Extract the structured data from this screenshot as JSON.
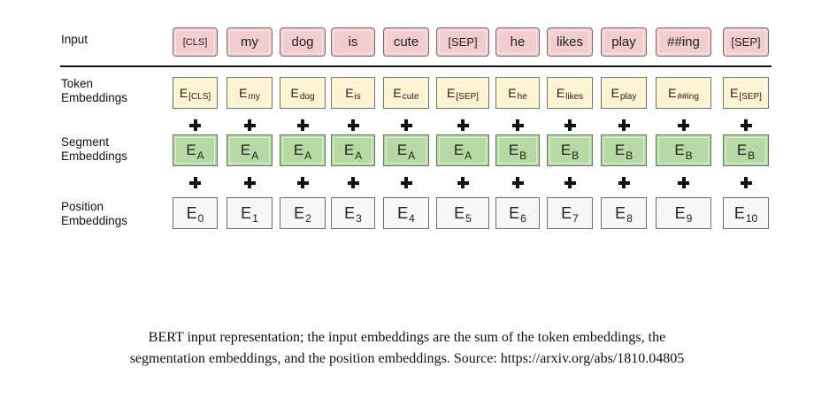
{
  "rows": {
    "input": {
      "label": "Input"
    },
    "token": {
      "label_line1": "Token",
      "label_line2": "Embeddings"
    },
    "segment": {
      "label_line1": "Segment",
      "label_line2": "Embeddings"
    },
    "position": {
      "label_line1": "Position",
      "label_line2": "Embeddings"
    }
  },
  "tokens": [
    "[CLS]",
    "my",
    "dog",
    "is",
    "cute",
    "[SEP]",
    "he",
    "likes",
    "play",
    "##ing",
    "[SEP]"
  ],
  "token_embeddings": [
    {
      "base": "E",
      "sub": "[CLS]"
    },
    {
      "base": "E",
      "sub": "my"
    },
    {
      "base": "E",
      "sub": "dog"
    },
    {
      "base": "E",
      "sub": "is"
    },
    {
      "base": "E",
      "sub": "cute"
    },
    {
      "base": "E",
      "sub": "[SEP]"
    },
    {
      "base": "E",
      "sub": "he"
    },
    {
      "base": "E",
      "sub": "likes"
    },
    {
      "base": "E",
      "sub": "play"
    },
    {
      "base": "E",
      "sub": "##ing"
    },
    {
      "base": "E",
      "sub": "[SEP]"
    }
  ],
  "segment_embeddings": [
    {
      "base": "E",
      "sub": "A"
    },
    {
      "base": "E",
      "sub": "A"
    },
    {
      "base": "E",
      "sub": "A"
    },
    {
      "base": "E",
      "sub": "A"
    },
    {
      "base": "E",
      "sub": "A"
    },
    {
      "base": "E",
      "sub": "A"
    },
    {
      "base": "E",
      "sub": "B"
    },
    {
      "base": "E",
      "sub": "B"
    },
    {
      "base": "E",
      "sub": "B"
    },
    {
      "base": "E",
      "sub": "B"
    },
    {
      "base": "E",
      "sub": "B"
    }
  ],
  "position_embeddings": [
    {
      "base": "E",
      "sub": "0"
    },
    {
      "base": "E",
      "sub": "1"
    },
    {
      "base": "E",
      "sub": "2"
    },
    {
      "base": "E",
      "sub": "3"
    },
    {
      "base": "E",
      "sub": "4"
    },
    {
      "base": "E",
      "sub": "5"
    },
    {
      "base": "E",
      "sub": "6"
    },
    {
      "base": "E",
      "sub": "7"
    },
    {
      "base": "E",
      "sub": "8"
    },
    {
      "base": "E",
      "sub": "9"
    },
    {
      "base": "E",
      "sub": "10"
    }
  ],
  "colors": {
    "input": "#f3cccd",
    "token": "#fdf3d0",
    "segment": "#b7d9a4",
    "position": "#f7f7f7"
  },
  "caption": {
    "line1": "BERT input representation; the input embeddings are the sum of the token embeddings, the",
    "line2": "segmentation embeddings, and the position embeddings. Source: https://arxiv.org/abs/1810.04805"
  }
}
